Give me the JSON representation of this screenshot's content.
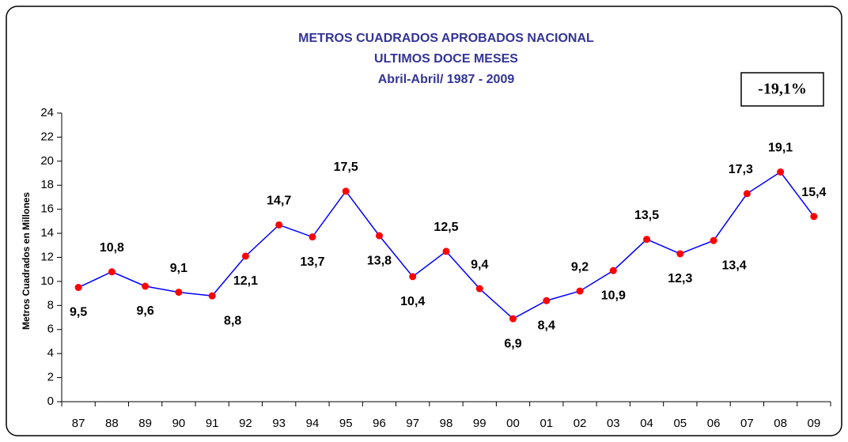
{
  "chart_data": {
    "type": "line",
    "title": [
      "METROS CUADRADOS APROBADOS NACIONAL",
      "ULTIMOS DOCE MESES",
      "Abril-Abril/ 1987 - 2009"
    ],
    "annotation": "-19,1%",
    "y_label": "Metros Cuadrados en  Millones",
    "categories": [
      "87",
      "88",
      "89",
      "90",
      "91",
      "92",
      "93",
      "94",
      "95",
      "96",
      "97",
      "98",
      "99",
      "00",
      "01",
      "02",
      "03",
      "04",
      "05",
      "06",
      "07",
      "08",
      "09"
    ],
    "series": [
      {
        "name": "Metros Cuadrados",
        "color": "#0000ff",
        "marker_color": "#ff0000",
        "values": [
          9.5,
          10.8,
          9.6,
          9.1,
          8.8,
          12.1,
          14.7,
          13.7,
          17.5,
          13.8,
          10.4,
          12.5,
          9.4,
          6.9,
          8.4,
          9.2,
          10.9,
          13.5,
          12.3,
          13.4,
          17.3,
          19.1,
          15.4
        ],
        "value_labels": [
          "9,5",
          "10,8",
          "9,6",
          "9,1",
          "8,8",
          "12,1",
          "14,7",
          "13,7",
          "17,5",
          "13,8",
          "10,4",
          "12,5",
          "9,4",
          "6,9",
          "8,4",
          "9,2",
          "10,9",
          "13,5",
          "12,3",
          "13,4",
          "17,3",
          "19,1",
          "15,4"
        ]
      }
    ],
    "ylim": [
      0,
      24
    ],
    "yticks": [
      0,
      2,
      4,
      6,
      8,
      10,
      12,
      14,
      16,
      18,
      20,
      22,
      24
    ]
  }
}
